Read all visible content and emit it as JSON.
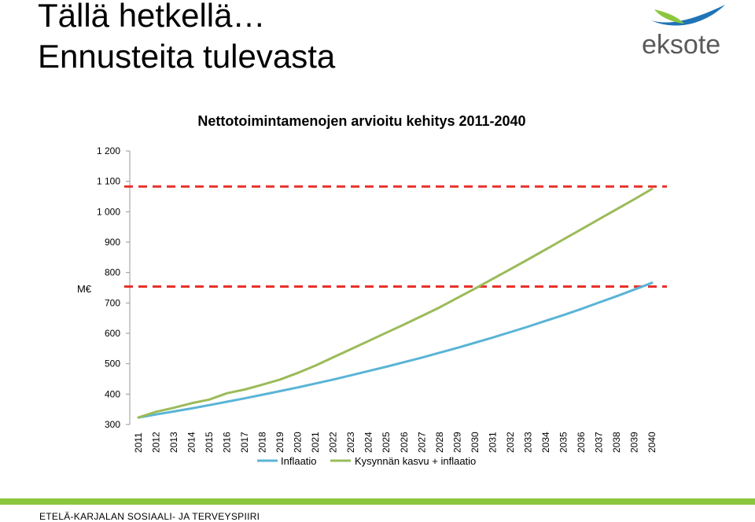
{
  "slide": {
    "title_line1": "Tällä hetkellä…",
    "title_line2": "Ennusteita tulevasta"
  },
  "logo": {
    "text": "eksote",
    "colors": {
      "blue": "#1f74b6",
      "green": "#8cc63f",
      "text": "#5a5a5a"
    }
  },
  "footer": {
    "text": "ETELÄ-KARJALAN SOSIAALI- JA TERVEYSPIIRI",
    "bar_color": "#8cc63f"
  },
  "chart_data": {
    "type": "line",
    "title": "Nettotoimintamenojen arvioitu kehitys 2011-2040",
    "ylabel": "M€",
    "ylim": [
      300,
      1200
    ],
    "yticks": [
      300,
      400,
      500,
      600,
      700,
      800,
      900,
      1000,
      1100,
      1200
    ],
    "ytick_labels": [
      "300",
      "400",
      "500",
      "600",
      "700",
      "800",
      "900",
      "1 000",
      "1 100",
      "1 200"
    ],
    "grid": false,
    "legend_position": "bottom",
    "categories": [
      "2011",
      "2012",
      "2013",
      "2014",
      "2015",
      "2016",
      "2017",
      "2018",
      "2019",
      "2020",
      "2021",
      "2022",
      "2023",
      "2024",
      "2025",
      "2026",
      "2027",
      "2028",
      "2029",
      "2030",
      "2031",
      "2032",
      "2033",
      "2034",
      "2035",
      "2036",
      "2037",
      "2038",
      "2039",
      "2040"
    ],
    "series": [
      {
        "name": "Inflaatio",
        "color": "#5ab4d6",
        "values": [
          323,
          333,
          343,
          353,
          364,
          375,
          386,
          398,
          410,
          422,
          435,
          448,
          462,
          476,
          490,
          505,
          520,
          536,
          552,
          569,
          586,
          604,
          622,
          641,
          660,
          680,
          701,
          722,
          744,
          766
        ]
      },
      {
        "name": "Kysynnän kasvu + inflaatio",
        "color": "#9bbb59",
        "values": [
          323,
          342,
          355,
          370,
          382,
          403,
          415,
          431,
          448,
          470,
          494,
          521,
          548,
          575,
          602,
          629,
          657,
          685,
          716,
          747,
          779,
          811,
          843,
          876,
          909,
          942,
          975,
          1008,
          1041,
          1075
        ]
      }
    ],
    "reference_lines": [
      {
        "value": 1083,
        "color": "#e8312a",
        "style": "dashed"
      },
      {
        "value": 754,
        "color": "#e8312a",
        "style": "dashed"
      }
    ]
  }
}
